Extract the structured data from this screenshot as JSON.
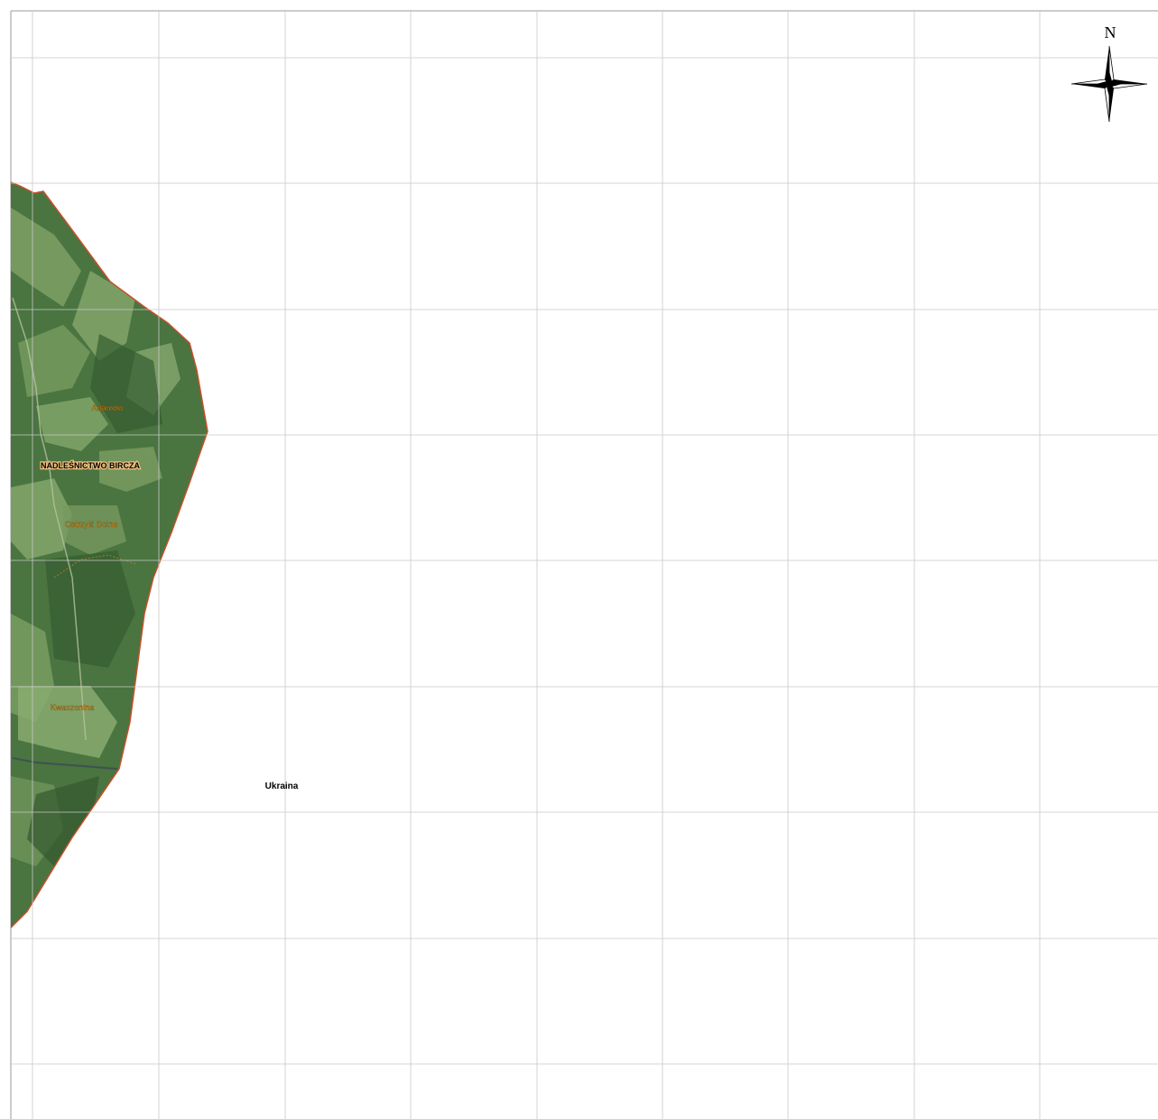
{
  "map": {
    "north_label": "N",
    "labels": {
      "forest_district": "NADLEŚNICTWO BIRCZA",
      "village_1": "Arłamów",
      "village_2": "Ostrzyki Dolne",
      "village_3": "Kwaszenina",
      "country": "Ukraina"
    },
    "colors": {
      "boundary": "#c8502a",
      "village_label": "#e8a020",
      "forest_dark": "#3f6a3a",
      "forest_light": "#6e9a5a"
    },
    "icons": [
      "compass-rose-icon"
    ]
  }
}
